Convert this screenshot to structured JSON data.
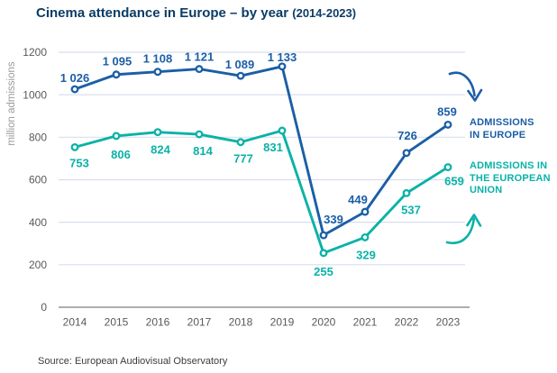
{
  "title": {
    "main": "Cinema attendance in Europe – by year",
    "suffix": "(2014-2023)"
  },
  "source": "Source: European Audiovisual Observatory",
  "legend": {
    "europe": {
      "label": "ADMISSIONS\nIN EUROPE",
      "color": "#1b5ea6"
    },
    "eu": {
      "label": "ADMISSIONS IN\nTHE EUROPEAN\nUNION",
      "color": "#0ab2a7"
    }
  },
  "chart_data": {
    "type": "line",
    "title": "Cinema attendance in Europe – by year (2014-2023)",
    "ylabel": "million admissions",
    "xlabel": "",
    "categories": [
      "2014",
      "2015",
      "2016",
      "2017",
      "2018",
      "2019",
      "2020",
      "2021",
      "2022",
      "2023"
    ],
    "series": [
      {
        "name": "ADMISSIONS IN EUROPE",
        "color": "#1b5ea6",
        "values": [
          1026,
          1095,
          1108,
          1121,
          1089,
          1133,
          339,
          449,
          726,
          859
        ],
        "labels": [
          "1 026",
          "1 095",
          "1 108",
          "1 121",
          "1 089",
          "1 133",
          "339",
          "449",
          "726",
          "859"
        ]
      },
      {
        "name": "ADMISSIONS IN THE EUROPEAN UNION",
        "color": "#0ab2a7",
        "values": [
          753,
          806,
          824,
          814,
          777,
          831,
          255,
          329,
          537,
          659
        ],
        "labels": [
          "753",
          "806",
          "824",
          "814",
          "777",
          "831",
          "255",
          "329",
          "537",
          "659"
        ]
      }
    ],
    "yticks": [
      0,
      200,
      400,
      600,
      800,
      1000,
      1200
    ],
    "ytick_labels": [
      "0",
      "200",
      "400",
      "600",
      "800",
      "1000",
      "1200"
    ],
    "ylim": [
      0,
      1200
    ],
    "grid": true,
    "legend_position": "right"
  }
}
